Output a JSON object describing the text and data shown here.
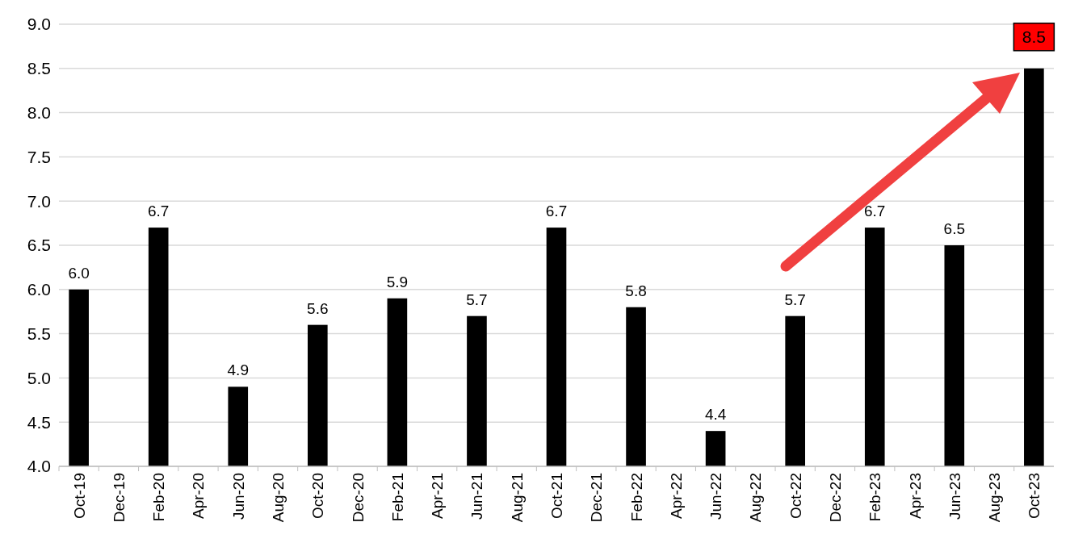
{
  "chart_data": {
    "type": "bar",
    "categories": [
      "Oct-19",
      "Dec-19",
      "Feb-20",
      "Apr-20",
      "Jun-20",
      "Aug-20",
      "Oct-20",
      "Dec-20",
      "Feb-21",
      "Apr-21",
      "Jun-21",
      "Aug-21",
      "Oct-21",
      "Dec-21",
      "Feb-22",
      "Apr-22",
      "Jun-22",
      "Aug-22",
      "Oct-22",
      "Dec-22",
      "Feb-23",
      "Apr-23",
      "Jun-23",
      "Aug-23",
      "Oct-23"
    ],
    "values": [
      6.0,
      null,
      6.7,
      null,
      4.9,
      null,
      5.6,
      null,
      5.9,
      null,
      5.7,
      null,
      6.7,
      null,
      5.8,
      null,
      4.4,
      null,
      5.7,
      null,
      6.7,
      null,
      6.5,
      null,
      8.5
    ],
    "value_labels": [
      "6.0",
      null,
      "6.7",
      null,
      "4.9",
      null,
      "5.6",
      null,
      "5.9",
      null,
      "5.7",
      null,
      "6.7",
      null,
      "5.8",
      null,
      "4.4",
      null,
      "5.7",
      null,
      "6.7",
      null,
      "6.5",
      null,
      null
    ],
    "annotations": [
      {
        "text": "8.5",
        "x": "Oct-23",
        "y": 8.5
      }
    ],
    "color": "#000000",
    "ylim": [
      4.0,
      9.0
    ],
    "yticks": [
      {
        "value": 4,
        "label": "4.0"
      },
      {
        "value": 4.5,
        "label": "4.5"
      },
      {
        "value": 5,
        "label": "5.0"
      },
      {
        "value": 5.5,
        "label": "5.5"
      },
      {
        "value": 6,
        "label": "6.0"
      },
      {
        "value": 6.5,
        "label": "6.5"
      },
      {
        "value": 7,
        "label": "7.0"
      },
      {
        "value": 7.5,
        "label": "7.5"
      },
      {
        "value": 8,
        "label": "8.0"
      },
      {
        "value": 8.5,
        "label": "8.5"
      },
      {
        "value": 9,
        "label": "9.0"
      }
    ],
    "grid": "y"
  }
}
